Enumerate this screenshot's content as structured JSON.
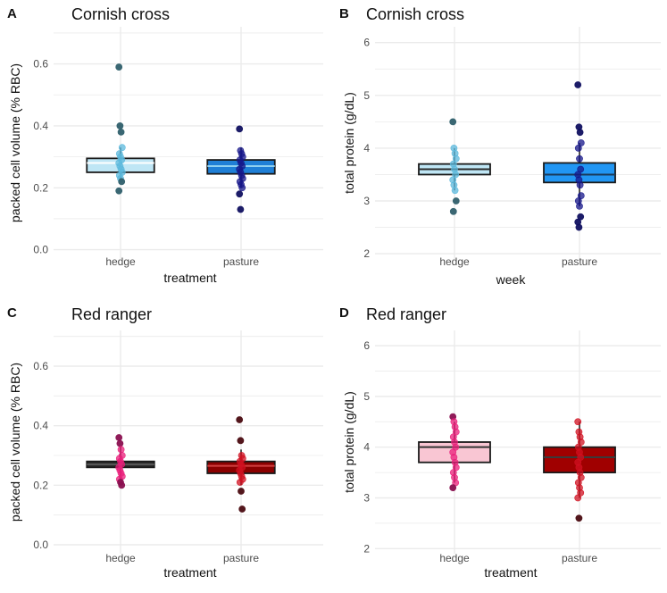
{
  "chart_data": [
    {
      "panel_letter": "A",
      "title": "Cornish cross",
      "type": "boxplot",
      "xlabel": "treatment",
      "ylabel": "packed cell volume (% RBC)",
      "ylim": [
        -0.03,
        0.72
      ],
      "yticks": [
        "0.0",
        "0.2",
        "0.4",
        "0.6"
      ],
      "yvalues": [
        0.0,
        0.2,
        0.4,
        0.6
      ],
      "categories": [
        "hedge",
        "pasture"
      ],
      "boxes": [
        {
          "name": "hedge",
          "q1": 0.25,
          "median": 0.28,
          "q3": 0.295,
          "whisker_low": 0.23,
          "whisker_high": 0.33,
          "fill": "#bfe6f5",
          "median_color": "#ffffff",
          "points": [
            0.59,
            0.4,
            0.38,
            0.33,
            0.31,
            0.3,
            0.29,
            0.28,
            0.27,
            0.26,
            0.25,
            0.24,
            0.23,
            0.22,
            0.19
          ],
          "point_color": "#5bb8dc",
          "outlier_color": "#2f5f6b"
        },
        {
          "name": "pasture",
          "q1": 0.245,
          "median": 0.27,
          "q3": 0.29,
          "whisker_low": 0.2,
          "whisker_high": 0.33,
          "fill": "#1f7fd6",
          "median_color": "#8fd0f0",
          "points": [
            0.39,
            0.32,
            0.31,
            0.3,
            0.29,
            0.28,
            0.27,
            0.26,
            0.25,
            0.24,
            0.23,
            0.22,
            0.21,
            0.2,
            0.18,
            0.13
          ],
          "point_color": "#16168a",
          "outlier_color": "#101060"
        }
      ]
    },
    {
      "panel_letter": "B",
      "title": "Cornish cross",
      "type": "boxplot",
      "xlabel": "week",
      "ylabel": "total protein (g/dL)",
      "ylim": [
        1.9,
        6.3
      ],
      "yticks": [
        "2",
        "3",
        "4",
        "5",
        "6"
      ],
      "yvalues": [
        2,
        3,
        4,
        5,
        6
      ],
      "categories": [
        "hedge",
        "pasture"
      ],
      "boxes": [
        {
          "name": "hedge",
          "q1": 3.5,
          "median": 3.6,
          "q3": 3.7,
          "whisker_low": 3.2,
          "whisker_high": 4.0,
          "fill": "#bfe6f5",
          "median_color": "#2a2a2a",
          "points": [
            4.5,
            4.0,
            3.9,
            3.8,
            3.7,
            3.6,
            3.5,
            3.4,
            3.3,
            3.2,
            3.0,
            2.8
          ],
          "point_color": "#5bb8dc",
          "outlier_color": "#2f5f6b"
        },
        {
          "name": "pasture",
          "q1": 3.35,
          "median": 3.5,
          "q3": 3.72,
          "whisker_low": 2.9,
          "whisker_high": 4.1,
          "fill": "#2196f3",
          "median_color": "#1a3a5a",
          "points": [
            5.2,
            4.4,
            4.3,
            4.1,
            4.0,
            3.8,
            3.6,
            3.5,
            3.4,
            3.3,
            3.1,
            3.0,
            2.9,
            2.7,
            2.6,
            2.5
          ],
          "point_color": "#16168a",
          "outlier_color": "#101060"
        }
      ]
    },
    {
      "panel_letter": "C",
      "title": "Red ranger",
      "type": "boxplot",
      "xlabel": "treatment",
      "ylabel": "packed cell volume (% RBC)",
      "ylim": [
        -0.03,
        0.72
      ],
      "yticks": [
        "0.0",
        "0.2",
        "0.4",
        "0.6"
      ],
      "yvalues": [
        0.0,
        0.2,
        0.4,
        0.6
      ],
      "categories": [
        "hedge",
        "pasture"
      ],
      "boxes": [
        {
          "name": "hedge",
          "q1": 0.26,
          "median": 0.27,
          "q3": 0.28,
          "whisker_low": 0.22,
          "whisker_high": 0.33,
          "fill": "#2b2b2b",
          "median_color": "#555555",
          "points": [
            0.36,
            0.34,
            0.32,
            0.3,
            0.29,
            0.28,
            0.27,
            0.26,
            0.25,
            0.24,
            0.23,
            0.22,
            0.21,
            0.2
          ],
          "point_color": "#e91e7a",
          "outlier_color": "#8a1050"
        },
        {
          "name": "pasture",
          "q1": 0.24,
          "median": 0.265,
          "q3": 0.28,
          "whisker_low": 0.2,
          "whisker_high": 0.32,
          "fill": "#8b0000",
          "median_color": "#d04040",
          "points": [
            0.42,
            0.35,
            0.3,
            0.29,
            0.28,
            0.27,
            0.26,
            0.25,
            0.24,
            0.23,
            0.22,
            0.21,
            0.18,
            0.12
          ],
          "point_color": "#d01020",
          "outlier_color": "#4a0a10"
        }
      ]
    },
    {
      "panel_letter": "D",
      "title": "Red ranger",
      "type": "boxplot",
      "xlabel": "treatment",
      "ylabel": "total protein (g/dL)",
      "ylim": [
        1.9,
        6.3
      ],
      "yticks": [
        "2",
        "3",
        "4",
        "5",
        "6"
      ],
      "yvalues": [
        2,
        3,
        4,
        5,
        6
      ],
      "categories": [
        "hedge",
        "pasture"
      ],
      "boxes": [
        {
          "name": "hedge",
          "q1": 3.7,
          "median": 4.0,
          "q3": 4.1,
          "whisker_low": 3.3,
          "whisker_high": 4.5,
          "fill": "#f9c6d3",
          "median_color": "#333333",
          "points": [
            4.6,
            4.5,
            4.4,
            4.3,
            4.2,
            4.1,
            4.0,
            3.9,
            3.8,
            3.7,
            3.6,
            3.5,
            3.4,
            3.3,
            3.2
          ],
          "point_color": "#e91e7a",
          "outlier_color": "#8a1050"
        },
        {
          "name": "pasture",
          "q1": 3.5,
          "median": 3.8,
          "q3": 4.0,
          "whisker_low": 3.0,
          "whisker_high": 4.5,
          "fill": "#a00000",
          "median_color": "#3a3a3a",
          "points": [
            4.5,
            4.3,
            4.2,
            4.1,
            4.0,
            3.9,
            3.8,
            3.7,
            3.6,
            3.5,
            3.4,
            3.3,
            3.2,
            3.1,
            3.0,
            2.6
          ],
          "point_color": "#d01020",
          "outlier_color": "#4a0a10"
        }
      ]
    }
  ],
  "colors": {
    "grid": "#ebebeb",
    "tick_text": "#4d4d4d",
    "title_text": "#111111",
    "box_stroke": "#1a1a1a"
  }
}
